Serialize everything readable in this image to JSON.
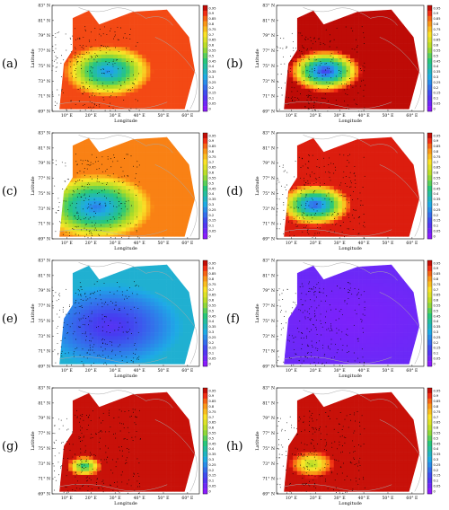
{
  "chart_data": [
    {
      "panel": "(a)",
      "type": "heatmap",
      "xlabel": "Longitude",
      "ylabel": "Latitude",
      "x_ticks": [
        "10° E",
        "20° E",
        "30° E",
        "40° E",
        "50° E",
        "60° E"
      ],
      "y_ticks": [
        "83° N",
        "81° N",
        "79° N",
        "77° N",
        "75° N",
        "73° N",
        "71° N",
        "69° N"
      ],
      "colorbar": [
        "0.95",
        "0.9",
        "0.85",
        "0.8",
        "0.75",
        "0.7",
        "0.65",
        "0.6",
        "0.55",
        "0.5",
        "0.45",
        "0.4",
        "0.35",
        "0.3",
        "0.25",
        "0.2",
        "0.15",
        "0.1",
        "0.05",
        "0"
      ],
      "field": {
        "core": [
          0.38,
          0.62
        ],
        "mid": 0.28,
        "outer": 0.9,
        "spread": 0.55
      }
    },
    {
      "panel": "(b)",
      "type": "heatmap",
      "xlabel": "Longitude",
      "ylabel": "Latitude",
      "x_ticks": [
        "10° E",
        "20° E",
        "30° E",
        "40° E",
        "50° E",
        "60° E"
      ],
      "y_ticks": [
        "83° N",
        "81° N",
        "79° N",
        "77° N",
        "75° N",
        "73° N",
        "71° N",
        "69° N"
      ],
      "colorbar": [
        "0.95",
        "0.9",
        "0.85",
        "0.8",
        "0.75",
        "0.7",
        "0.65",
        "0.6",
        "0.55",
        "0.5",
        "0.45",
        "0.4",
        "0.35",
        "0.3",
        "0.25",
        "0.2",
        "0.15",
        "0.1",
        "0.05",
        "0"
      ],
      "field": {
        "core": [
          0.33,
          0.62
        ],
        "mid": 0.15,
        "outer": 0.98,
        "spread": 0.45
      }
    },
    {
      "panel": "(c)",
      "type": "heatmap",
      "xlabel": "Longitude",
      "ylabel": "Latitude",
      "x_ticks": [
        "10° E",
        "20° E",
        "30° E",
        "40° E",
        "50° E",
        "60° E"
      ],
      "y_ticks": [
        "83° N",
        "81° N",
        "79° N",
        "77° N",
        "75° N",
        "73° N",
        "71° N",
        "69° N"
      ],
      "colorbar": [
        "0.95",
        "0.9",
        "0.85",
        "0.8",
        "0.75",
        "0.7",
        "0.65",
        "0.6",
        "0.55",
        "0.5",
        "0.45",
        "0.4",
        "0.35",
        "0.3",
        "0.25",
        "0.2",
        "0.15",
        "0.1",
        "0.05",
        "0"
      ],
      "field": {
        "core": [
          0.3,
          0.7
        ],
        "mid": 0.25,
        "outer": 0.85,
        "spread": 0.7
      }
    },
    {
      "panel": "(d)",
      "type": "heatmap",
      "xlabel": "Longitude",
      "ylabel": "Latitude",
      "x_ticks": [
        "10° E",
        "20° E",
        "30° E",
        "40° E",
        "50° E",
        "60° E"
      ],
      "y_ticks": [
        "83° N",
        "81° N",
        "79° N",
        "77° N",
        "75° N",
        "73° N",
        "71° N",
        "69° N"
      ],
      "colorbar": [
        "0.95",
        "0.9",
        "0.85",
        "0.8",
        "0.75",
        "0.7",
        "0.65",
        "0.6",
        "0.55",
        "0.5",
        "0.45",
        "0.4",
        "0.35",
        "0.3",
        "0.25",
        "0.2",
        "0.15",
        "0.1",
        "0.05",
        "0"
      ],
      "field": {
        "core": [
          0.26,
          0.68
        ],
        "mid": 0.2,
        "outer": 0.95,
        "spread": 0.45
      }
    },
    {
      "panel": "(e)",
      "type": "heatmap",
      "xlabel": "Longitude",
      "ylabel": "Latitude",
      "x_ticks": [
        "10° E",
        "20° E",
        "30° E",
        "40° E",
        "50° E",
        "60° E"
      ],
      "y_ticks": [
        "83° N",
        "81° N",
        "79° N",
        "77° N",
        "75° N",
        "73° N",
        "71° N",
        "69° N"
      ],
      "colorbar": [
        "0.95",
        "0.9",
        "0.85",
        "0.8",
        "0.75",
        "0.7",
        "0.65",
        "0.6",
        "0.55",
        "0.5",
        "0.45",
        "0.4",
        "0.35",
        "0.3",
        "0.25",
        "0.2",
        "0.15",
        "0.1",
        "0.05",
        "0"
      ],
      "field": {
        "core": [
          0.4,
          0.62
        ],
        "mid": 0.12,
        "outer": 0.35,
        "spread": 0.9
      }
    },
    {
      "panel": "(f)",
      "type": "heatmap",
      "xlabel": "Longitude",
      "ylabel": "Latitude",
      "x_ticks": [
        "10° E",
        "20° E",
        "30° E",
        "40° E",
        "50° E",
        "60° E"
      ],
      "y_ticks": [
        "83° N",
        "81° N",
        "79° N",
        "77° N",
        "75° N",
        "73° N",
        "71° N",
        "69° N"
      ],
      "colorbar": [
        "0.95",
        "0.9",
        "0.85",
        "0.8",
        "0.75",
        "0.7",
        "0.65",
        "0.6",
        "0.55",
        "0.5",
        "0.45",
        "0.4",
        "0.35",
        "0.3",
        "0.25",
        "0.2",
        "0.15",
        "0.1",
        "0.05",
        "0"
      ],
      "field": {
        "core": [
          0.5,
          0.55
        ],
        "mid": 0.05,
        "outer": 0.08,
        "spread": 1.0
      }
    },
    {
      "panel": "(g)",
      "type": "heatmap",
      "xlabel": "Longitude",
      "ylabel": "Latitude",
      "x_ticks": [
        "10° E",
        "20° E",
        "30° E",
        "40° E",
        "50° E",
        "60° E"
      ],
      "y_ticks": [
        "83° N",
        "81° N",
        "79° N",
        "77° N",
        "75° N",
        "73° N",
        "71° N",
        "69° N"
      ],
      "colorbar": [
        "0.95",
        "0.9",
        "0.85",
        "0.8",
        "0.75",
        "0.7",
        "0.65",
        "0.6",
        "0.55",
        "0.5",
        "0.45",
        "0.4",
        "0.35",
        "0.3",
        "0.25",
        "0.2",
        "0.15",
        "0.1",
        "0.05",
        "0"
      ],
      "field": {
        "core": [
          0.22,
          0.74
        ],
        "mid": 0.45,
        "outer": 0.97,
        "spread": 0.22
      }
    },
    {
      "panel": "(h)",
      "type": "heatmap",
      "xlabel": "Longitude",
      "ylabel": "Latitude",
      "x_ticks": [
        "10° E",
        "20° E",
        "30° E",
        "40° E",
        "50° E",
        "60° E"
      ],
      "y_ticks": [
        "83° N",
        "81° N",
        "79° N",
        "77° N",
        "75° N",
        "73° N",
        "71° N",
        "69° N"
      ],
      "colorbar": [
        "0.95",
        "0.9",
        "0.85",
        "0.8",
        "0.75",
        "0.7",
        "0.65",
        "0.6",
        "0.55",
        "0.5",
        "0.45",
        "0.4",
        "0.35",
        "0.3",
        "0.25",
        "0.2",
        "0.15",
        "0.1",
        "0.05",
        "0"
      ],
      "field": {
        "core": [
          0.24,
          0.72
        ],
        "mid": 0.6,
        "outer": 0.97,
        "spread": 0.28
      }
    }
  ]
}
